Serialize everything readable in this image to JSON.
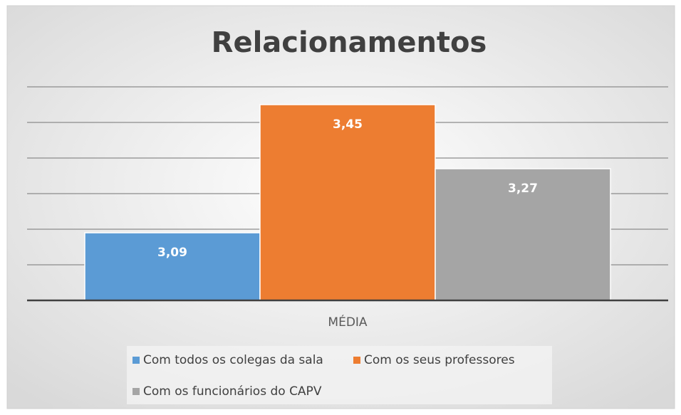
{
  "chart_data": {
    "type": "bar",
    "title": "Relacionamentos",
    "categories": [
      "MÉDIA"
    ],
    "series": [
      {
        "name": "Com todos os colegas da sala",
        "color": "#5b9bd5",
        "values": [
          3.09
        ],
        "value_labels": [
          "3,09"
        ]
      },
      {
        "name": "Com os seus professores",
        "color": "#ed7d31",
        "values": [
          3.45
        ],
        "value_labels": [
          "3,45"
        ]
      },
      {
        "name": "Com os funcionários do CAPV",
        "color": "#a5a5a5",
        "values": [
          3.27
        ],
        "value_labels": [
          "3,27"
        ]
      }
    ],
    "ylim": [
      2.9,
      3.5
    ],
    "yticks": [
      2.9,
      3.0,
      3.1,
      3.2,
      3.3,
      3.4,
      3.5
    ],
    "grid": true,
    "legend": "bottom"
  }
}
